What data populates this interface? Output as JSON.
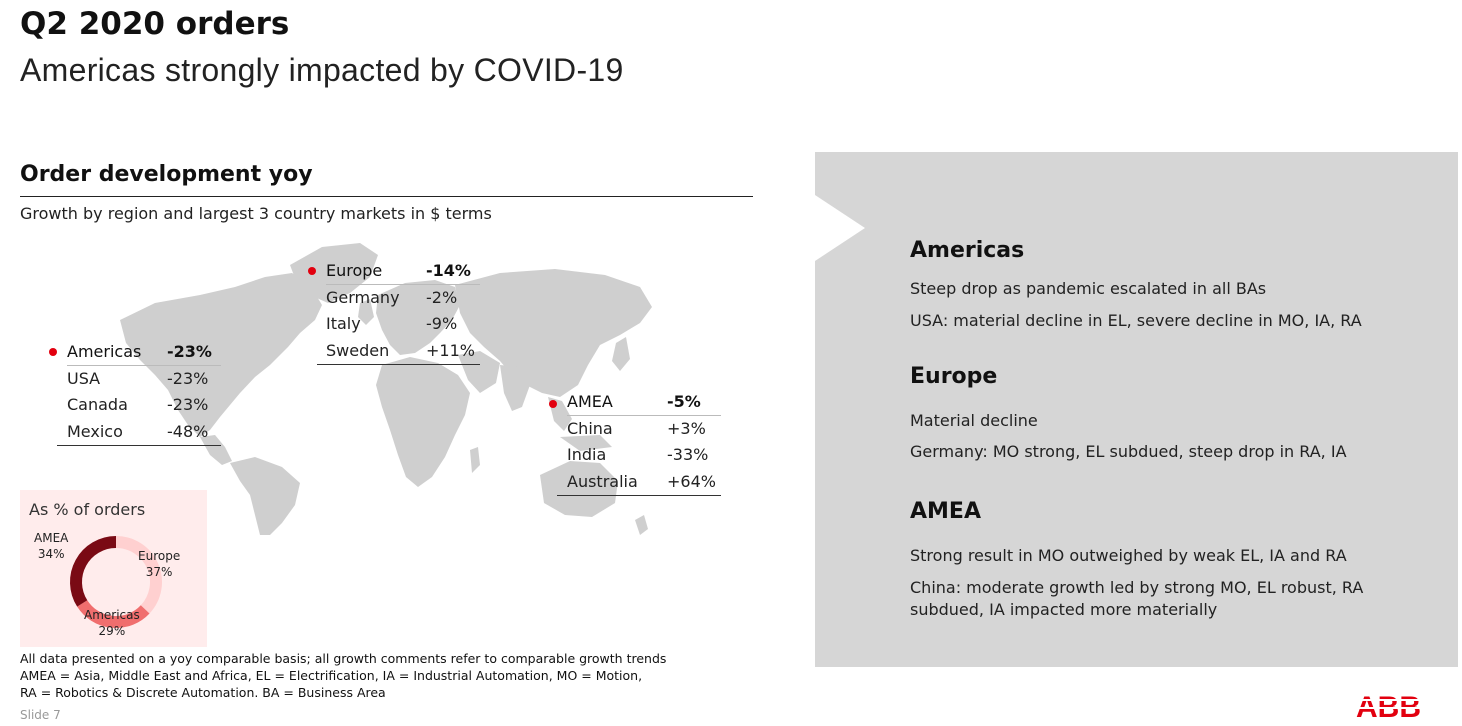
{
  "header": {
    "title": "Q2 2020 orders",
    "subtitle": "Americas strongly impacted by COVID-19"
  },
  "section": {
    "heading": "Order development yoy",
    "subheading": "Growth by region and largest 3 country markets in $ terms"
  },
  "regions": {
    "europe": {
      "rows": [
        {
          "name": "Europe",
          "value": "-14%"
        },
        {
          "name": "Germany",
          "value": "-2%"
        },
        {
          "name": "Italy",
          "value": "-9%"
        },
        {
          "name": "Sweden",
          "value": "+11%"
        }
      ]
    },
    "americas": {
      "rows": [
        {
          "name": "Americas",
          "value": "-23%"
        },
        {
          "name": "USA",
          "value": "-23%"
        },
        {
          "name": "Canada",
          "value": "-23%"
        },
        {
          "name": "Mexico",
          "value": "-48%"
        }
      ]
    },
    "amea": {
      "rows": [
        {
          "name": "AMEA",
          "value": "-5%"
        },
        {
          "name": "China",
          "value": "+3%"
        },
        {
          "name": "India",
          "value": "-33%"
        },
        {
          "name": "Australia",
          "value": "+64%"
        }
      ]
    },
    "marker_color": "#e2000f"
  },
  "share_chart": {
    "title": "As % of orders",
    "slices": [
      {
        "name": "Europe",
        "label": "37%",
        "value": 37,
        "color": "#ffd0d0"
      },
      {
        "name": "Americas",
        "label": "29%",
        "value": 29,
        "color": "#f06e6e"
      },
      {
        "name": "AMEA",
        "label": "34%",
        "value": 34,
        "color": "#7a0a14"
      }
    ]
  },
  "footnote": {
    "lines": [
      "All data presented on a yoy comparable basis; all growth comments refer to comparable growth trends",
      "AMEA = Asia, Middle East and Africa, EL = Electrification, IA = Industrial Automation, MO = Motion,",
      "RA = Robotics & Discrete Automation. BA = Business Area"
    ]
  },
  "slide_number": "Slide 7",
  "panel": {
    "sections": [
      {
        "heading": "Americas",
        "lines": [
          "Steep drop as pandemic escalated in all BAs",
          "USA: material decline in EL, severe decline in MO, IA, RA"
        ]
      },
      {
        "heading": "Europe",
        "lines": [
          "Material decline",
          "Germany: MO strong, EL subdued, steep drop in RA, IA"
        ]
      },
      {
        "heading": "AMEA",
        "lines": [
          "Strong result in MO outweighed by weak EL, IA and RA",
          "China: moderate growth led by strong MO, EL robust, RA",
          "subdued, IA impacted more materially"
        ]
      }
    ]
  },
  "brand": {
    "logo_text": "ABB",
    "color": "#e2000f"
  }
}
